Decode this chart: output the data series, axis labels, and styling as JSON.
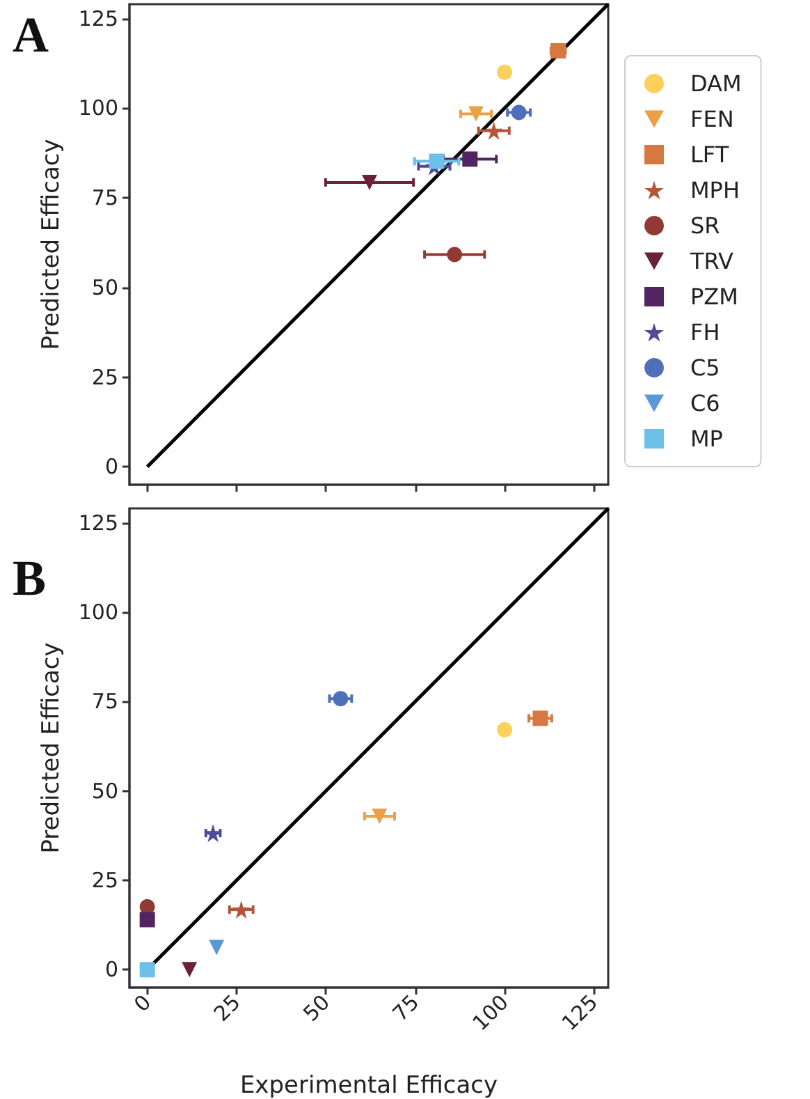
{
  "chart_data": [
    {
      "type": "scatter",
      "title": "A",
      "ylabel": "Predicted Efficacy",
      "xlim": [
        -5,
        129
      ],
      "ylim": [
        -5,
        129
      ],
      "xticks": [
        0,
        25,
        50,
        75,
        100,
        125
      ],
      "yticks": [
        0,
        25,
        50,
        75,
        100,
        125
      ],
      "tick_labels": "y",
      "series": [
        {
          "type": "line",
          "color": "#000000",
          "x": [
            0,
            129
          ],
          "values": [
            0,
            129
          ]
        },
        {
          "color": "#fbd15b",
          "marker": "circle",
          "x": [
            100
          ],
          "values": [
            110
          ]
        },
        {
          "color": "#eba046",
          "marker": "triangle",
          "x": [
            92
          ],
          "values": [
            98.4
          ],
          "xerrors": [
            4.3
          ]
        },
        {
          "color": "#d6783f",
          "marker": "square",
          "x": [
            115
          ],
          "values": [
            116
          ],
          "xerrors": [
            2
          ]
        },
        {
          "color": "#b5553a",
          "marker": "star",
          "x": [
            97
          ],
          "values": [
            93.7
          ],
          "xerrors": [
            4.3
          ]
        },
        {
          "color": "#913a33",
          "marker": "circle",
          "x": [
            86
          ],
          "values": [
            59.2
          ],
          "xerrors": [
            8.4
          ]
        },
        {
          "color": "#6a2238",
          "marker": "triangle",
          "x": [
            62.2
          ],
          "values": [
            79.3
          ],
          "xerrors": [
            12.3
          ]
        },
        {
          "color": "#522560",
          "marker": "square",
          "x": [
            90.3
          ],
          "values": [
            85.8
          ],
          "xerrors": [
            7.4
          ]
        },
        {
          "color": "#4e4a9c",
          "marker": "star",
          "x": [
            80.3
          ],
          "values": [
            83.8
          ],
          "xerrors": [
            4.4
          ]
        },
        {
          "color": "#4f6fba",
          "marker": "circle",
          "x": [
            104
          ],
          "values": [
            98.8
          ],
          "xerrors": [
            3.2
          ]
        },
        {
          "color": "#6cc0ea",
          "marker": "square",
          "x": [
            81
          ],
          "values": [
            85.2
          ],
          "xerrors": [
            6.2
          ]
        }
      ]
    },
    {
      "type": "scatter",
      "title": "B",
      "ylabel": "Predicted Efficacy",
      "xlabel": "Experimental Efficacy",
      "xlim": [
        -5,
        129
      ],
      "ylim": [
        -5,
        129
      ],
      "xticks": [
        0,
        25,
        50,
        75,
        100,
        125
      ],
      "yticks": [
        0,
        25,
        50,
        75,
        100,
        125
      ],
      "legend": "right",
      "series": [
        {
          "type": "line",
          "color": "#000000",
          "x": [
            0,
            129
          ],
          "values": [
            0,
            129
          ]
        },
        {
          "name": "DAM",
          "color": "#fbd15b",
          "marker": "circle",
          "x": [
            100
          ],
          "values": [
            67.1
          ]
        },
        {
          "name": "FEN",
          "color": "#eba046",
          "marker": "triangle",
          "x": [
            65
          ],
          "values": [
            42.9
          ],
          "xerrors": [
            4.2
          ]
        },
        {
          "name": "LFT",
          "color": "#d6783f",
          "marker": "square",
          "x": [
            110
          ],
          "values": [
            70.3
          ],
          "xerrors": [
            3.2
          ]
        },
        {
          "name": "MPH",
          "color": "#b5553a",
          "marker": "star",
          "x": [
            26.3
          ],
          "values": [
            16.8
          ],
          "xerrors": [
            3.3
          ]
        },
        {
          "name": "SR",
          "color": "#913a33",
          "marker": "circle",
          "x": [
            0
          ],
          "values": [
            17.6
          ]
        },
        {
          "name": "TRV",
          "color": "#6a2238",
          "marker": "triangle",
          "x": [
            11.8
          ],
          "values": [
            0
          ]
        },
        {
          "name": "PZM",
          "color": "#522560",
          "marker": "square",
          "x": [
            0
          ],
          "values": [
            14
          ]
        },
        {
          "name": "FH",
          "color": "#4e4a9c",
          "marker": "star",
          "x": [
            18.4
          ],
          "values": [
            38.2
          ],
          "xerrors": [
            2
          ]
        },
        {
          "name": "C5",
          "color": "#4f6fba",
          "marker": "circle",
          "x": [
            54.1
          ],
          "values": [
            75.8
          ],
          "xerrors": [
            3.1
          ]
        },
        {
          "name": "C6",
          "color": "#5b98da",
          "marker": "triangle",
          "x": [
            19.4
          ],
          "values": [
            6.2
          ]
        },
        {
          "name": "MP",
          "color": "#6cc0ea",
          "marker": "square",
          "x": [
            0
          ],
          "values": [
            0
          ]
        }
      ]
    }
  ]
}
